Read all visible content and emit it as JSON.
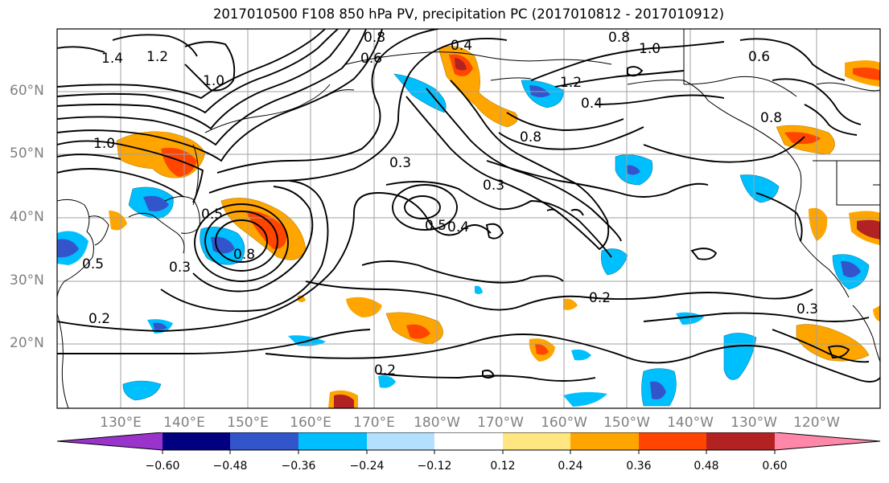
{
  "title": "2017010500 F108 850 hPa PV, precipitation PC (2017010812 - 2017010912)",
  "lat_labels": [
    "60°N",
    "50°N",
    "40°N",
    "30°N",
    "20°N"
  ],
  "lon_labels": [
    "130°E",
    "140°E",
    "150°E",
    "160°E",
    "170°E",
    "180°W",
    "170°W",
    "160°W",
    "150°W",
    "140°W",
    "130°W",
    "120°W"
  ],
  "contour_labels": [
    "1.4",
    "1.2",
    "1.0",
    "0.8",
    "0.6",
    "0.4",
    "1.0",
    "0.6",
    "0.8",
    "1.2",
    "0.4",
    "1.0",
    "0.8",
    "0.3",
    "0.8",
    "0.5",
    "0.4",
    "0.3",
    "0.5",
    "0.2",
    "0.2",
    "0.3",
    "0.2",
    "0.5",
    "0.8",
    "0.3"
  ],
  "colorbar": {
    "ticks": [
      "−0.60",
      "−0.48",
      "−0.36",
      "−0.24",
      "−0.12",
      "0.12",
      "0.24",
      "0.36",
      "0.48",
      "0.60"
    ],
    "colors": [
      "#9933cc",
      "#000080",
      "#3355cc",
      "#00bfff",
      "#b3e0ff",
      "#ffffff",
      "#ffe680",
      "#ffa500",
      "#ff4500",
      "#b22222",
      "#ff88aa"
    ]
  }
}
